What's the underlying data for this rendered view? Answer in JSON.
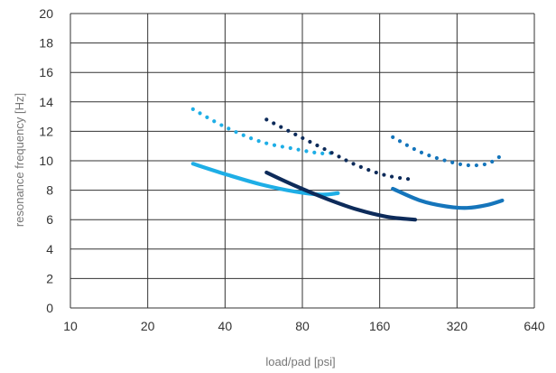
{
  "chart_data": {
    "type": "line",
    "title": "",
    "xlabel": "load/pad [psi]",
    "ylabel": "resonance frequency [Hz]",
    "x_scale": "log2",
    "xlim": [
      10,
      640
    ],
    "ylim": [
      0,
      20
    ],
    "x_ticks": [
      10,
      20,
      40,
      80,
      160,
      320,
      640
    ],
    "y_ticks": [
      0,
      2,
      4,
      6,
      8,
      10,
      12,
      14,
      16,
      18,
      20
    ],
    "grid": true,
    "legend": "none",
    "series": [
      {
        "color": "#1eaee6",
        "style": "solid",
        "x": [
          30,
          40,
          55,
          75,
          95,
          110
        ],
        "y": [
          9.8,
          9.1,
          8.4,
          7.9,
          7.7,
          7.8
        ]
      },
      {
        "color": "#1eaee6",
        "style": "dotted",
        "x": [
          30,
          40,
          55,
          75,
          95,
          110
        ],
        "y": [
          13.5,
          12.3,
          11.3,
          10.8,
          10.5,
          10.6
        ]
      },
      {
        "color": "#0d2b5a",
        "style": "solid",
        "x": [
          58,
          75,
          100,
          130,
          170,
          220
        ],
        "y": [
          9.2,
          8.3,
          7.4,
          6.7,
          6.2,
          6.0
        ]
      },
      {
        "color": "#0d2b5a",
        "style": "dotted",
        "x": [
          58,
          75,
          100,
          130,
          170,
          220
        ],
        "y": [
          12.8,
          11.8,
          10.7,
          9.7,
          9.0,
          8.7
        ]
      },
      {
        "color": "#1575bb",
        "style": "solid",
        "x": [
          180,
          230,
          290,
          350,
          420,
          480
        ],
        "y": [
          8.1,
          7.3,
          6.9,
          6.8,
          7.0,
          7.3
        ]
      },
      {
        "color": "#1575bb",
        "style": "dotted",
        "x": [
          180,
          230,
          290,
          350,
          420,
          480
        ],
        "y": [
          11.6,
          10.6,
          10.0,
          9.7,
          9.8,
          10.4
        ]
      }
    ]
  }
}
